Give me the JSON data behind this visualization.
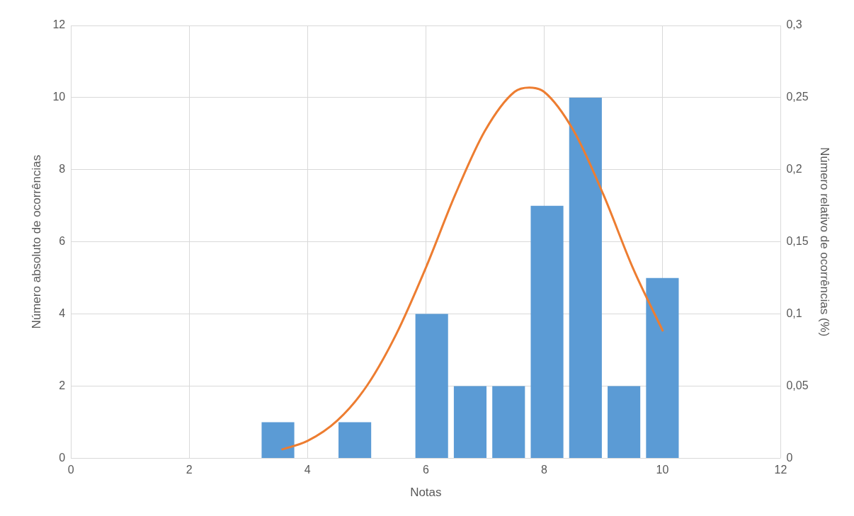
{
  "chart_data": {
    "type": "bar",
    "xlabel": "Notas",
    "ylabel": "Número absoluto de ocorrências",
    "y2label": "Número relativo de ocorrências (%)",
    "xlim": [
      0,
      12
    ],
    "xticks": [
      0,
      2,
      4,
      6,
      8,
      10,
      12
    ],
    "ylim": [
      0,
      12
    ],
    "yticks": [
      0,
      2,
      4,
      6,
      8,
      10,
      12
    ],
    "y2lim": [
      0,
      0.3
    ],
    "y2ticks": [
      {
        "value": 0,
        "label": "0"
      },
      {
        "value": 0.05,
        "label": "0,05"
      },
      {
        "value": 0.1,
        "label": "0,1"
      },
      {
        "value": 0.15,
        "label": "0,15"
      },
      {
        "value": 0.2,
        "label": "0,2"
      },
      {
        "value": 0.25,
        "label": "0,25"
      },
      {
        "value": 0.3,
        "label": "0,3"
      }
    ],
    "grid": true,
    "series": [
      {
        "color": "#5b9bd5",
        "x": [
          3.5,
          4.15,
          4.8,
          5.45,
          6.1,
          6.75,
          7.4,
          8.05,
          8.7,
          9.35,
          10.0
        ],
        "values": [
          1,
          0,
          1,
          0,
          4,
          2,
          2,
          7,
          10,
          2,
          5
        ]
      },
      {
        "type": "line",
        "axis": "y2",
        "color": "#ed7d31",
        "marker": "none",
        "x": [
          3.56,
          4,
          4.5,
          5,
          5.5,
          6,
          6.5,
          7,
          7.5,
          7.75,
          8,
          8.5,
          9,
          9.5,
          10.01
        ],
        "values": [
          0.006,
          0.012,
          0.026,
          0.05,
          0.086,
          0.132,
          0.183,
          0.227,
          0.254,
          0.257,
          0.254,
          0.227,
          0.183,
          0.132,
          0.088
        ]
      }
    ]
  }
}
